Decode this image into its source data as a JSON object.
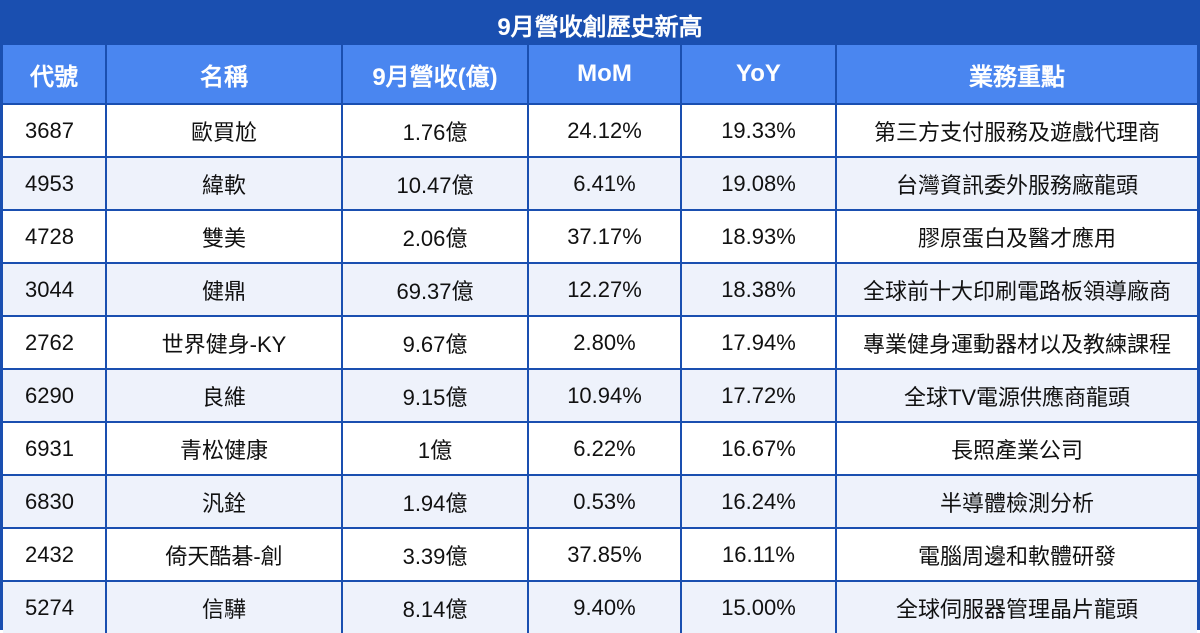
{
  "title": "9月營收創歷史新高",
  "columns": [
    "代號",
    "名稱",
    "9月營收(億)",
    "MoM",
    "YoY",
    "業務重點"
  ],
  "rows": [
    {
      "code": "3687",
      "name": "歐買尬",
      "revenue": "1.76億",
      "mom": "24.12%",
      "yoy": "19.33%",
      "focus": "第三方支付服務及遊戲代理商"
    },
    {
      "code": "4953",
      "name": "緯軟",
      "revenue": "10.47億",
      "mom": "6.41%",
      "yoy": "19.08%",
      "focus": "台灣資訊委外服務廠龍頭"
    },
    {
      "code": "4728",
      "name": "雙美",
      "revenue": "2.06億",
      "mom": "37.17%",
      "yoy": "18.93%",
      "focus": "膠原蛋白及醫才應用"
    },
    {
      "code": "3044",
      "name": "健鼎",
      "revenue": "69.37億",
      "mom": "12.27%",
      "yoy": "18.38%",
      "focus": "全球前十大印刷電路板領導廠商"
    },
    {
      "code": "2762",
      "name": "世界健身-KY",
      "revenue": "9.67億",
      "mom": "2.80%",
      "yoy": "17.94%",
      "focus": "專業健身運動器材以及教練課程"
    },
    {
      "code": "6290",
      "name": "良維",
      "revenue": "9.15億",
      "mom": "10.94%",
      "yoy": "17.72%",
      "focus": "全球TV電源供應商龍頭"
    },
    {
      "code": "6931",
      "name": "青松健康",
      "revenue": "1億",
      "mom": "6.22%",
      "yoy": "16.67%",
      "focus": "長照產業公司"
    },
    {
      "code": "6830",
      "name": "汎銓",
      "revenue": "1.94億",
      "mom": "0.53%",
      "yoy": "16.24%",
      "focus": "半導體檢測分析"
    },
    {
      "code": "2432",
      "name": "倚天酷碁-創",
      "revenue": "3.39億",
      "mom": "37.85%",
      "yoy": "16.11%",
      "focus": "電腦周邊和軟體研發"
    },
    {
      "code": "5274",
      "name": "信驊",
      "revenue": "8.14億",
      "mom": "9.40%",
      "yoy": "15.00%",
      "focus": "全球伺服器管理晶片龍頭"
    }
  ],
  "colors": {
    "title_bg": "#1a4fb0",
    "header_bg": "#4a86f0",
    "row_alt_bg": "#eef2fb",
    "border": "#1a4fb0"
  }
}
